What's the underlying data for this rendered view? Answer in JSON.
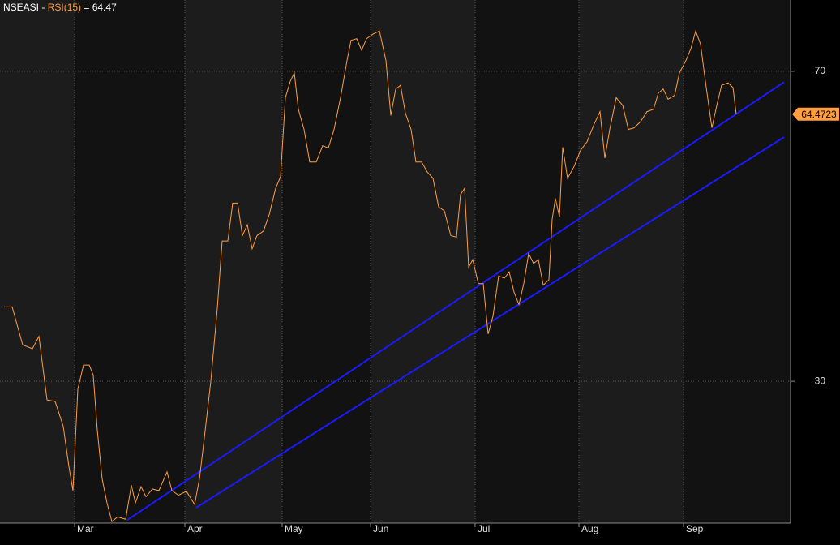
{
  "chart_data": {
    "type": "line",
    "title_parts": [
      {
        "text": "NSEASI - ",
        "color": "#ffffff"
      },
      {
        "text": "RSI(15)",
        "color": "#ff9f40"
      },
      {
        "text": " = 64.47",
        "color": "#ffffff"
      }
    ],
    "x": [
      5,
      15,
      28,
      40,
      48,
      58,
      68,
      78,
      85,
      90,
      96,
      103,
      110,
      115,
      120,
      126,
      132,
      138,
      145,
      155,
      162,
      167,
      174,
      180,
      188,
      196,
      206,
      212,
      220,
      230,
      240,
      246,
      252,
      260,
      268,
      274,
      281,
      287,
      293,
      299,
      305,
      311,
      317,
      325,
      332,
      340,
      346,
      352,
      358,
      363,
      368,
      375,
      382,
      390,
      398,
      405,
      412,
      420,
      428,
      433,
      440,
      446,
      452,
      460,
      468,
      476,
      482,
      488,
      494,
      500,
      507,
      513,
      520,
      527,
      534,
      541,
      548,
      556,
      563,
      568,
      573,
      578,
      583,
      590,
      596,
      602,
      608,
      615,
      622,
      628,
      634,
      640,
      646,
      652,
      658,
      664,
      670,
      677,
      681,
      685,
      690,
      694,
      700,
      708,
      716,
      724,
      732,
      740,
      746,
      752,
      760,
      768,
      775,
      782,
      790,
      798,
      806,
      812,
      818,
      824,
      832,
      838,
      846,
      852,
      858,
      864,
      870,
      878,
      884,
      890,
      898,
      904,
      908
    ],
    "series": [
      {
        "color": "#ff9f40",
        "values": [
          39.6,
          39.6,
          34.7,
          34.2,
          35.8,
          27.6,
          27.4,
          24.2,
          19.0,
          15.9,
          29.0,
          32.1,
          32.1,
          30.8,
          23.7,
          17.4,
          14.3,
          11.9,
          12.5,
          12.2,
          16.6,
          14.3,
          16.4,
          15.1,
          16.1,
          15.9,
          18.3,
          15.9,
          15.3,
          15.8,
          14.1,
          17.4,
          22.7,
          30.0,
          39.4,
          48.1,
          48.1,
          53.0,
          53.0,
          48.8,
          50.2,
          47.1,
          48.8,
          49.4,
          51.5,
          54.9,
          56.4,
          66.6,
          68.7,
          69.8,
          65.1,
          62.5,
          58.3,
          58.3,
          60.4,
          60.1,
          62.5,
          66.6,
          71.4,
          74.0,
          74.2,
          72.7,
          74.2,
          74.8,
          75.2,
          71.4,
          64.3,
          67.7,
          68.2,
          64.6,
          62.5,
          58.3,
          58.3,
          57.0,
          56.2,
          52.5,
          52.0,
          48.8,
          48.6,
          54.1,
          54.9,
          44.7,
          45.7,
          42.6,
          42.6,
          36.1,
          38.4,
          43.6,
          43.3,
          44.1,
          41.5,
          39.9,
          42.6,
          46.5,
          45.2,
          45.7,
          42.4,
          43.1,
          50.9,
          53.6,
          51.2,
          60.2,
          56.2,
          57.7,
          59.8,
          60.9,
          63.0,
          64.8,
          58.8,
          62.5,
          66.6,
          65.6,
          62.5,
          62.7,
          63.5,
          64.8,
          65.1,
          67.2,
          67.7,
          66.4,
          66.9,
          69.8,
          71.4,
          72.9,
          75.2,
          73.5,
          68.7,
          62.7,
          65.6,
          68.2,
          68.5,
          67.9,
          64.47
        ]
      }
    ],
    "last_label": "64.4723",
    "trendlines": [
      {
        "color": "#1a1aff",
        "x": [
          157,
          967
        ],
        "values": [
          12.1,
          68.6
        ]
      },
      {
        "color": "#1a1aff",
        "x": [
          242,
          967
        ],
        "values": [
          13.7,
          61.5
        ]
      }
    ],
    "xlim": [
      0,
      975
    ],
    "xticks": [
      {
        "value": 92,
        "label": "Mar"
      },
      {
        "value": 228,
        "label": "Apr"
      },
      {
        "value": 348,
        "label": "May"
      },
      {
        "value": 457,
        "label": "Jun"
      },
      {
        "value": 586,
        "label": "Jul"
      },
      {
        "value": 714,
        "label": "Aug"
      },
      {
        "value": 843,
        "label": "Sep"
      }
    ],
    "ylim": [
      11.7,
      79.2
    ],
    "yticks": [
      30,
      70
    ],
    "grid": true
  }
}
